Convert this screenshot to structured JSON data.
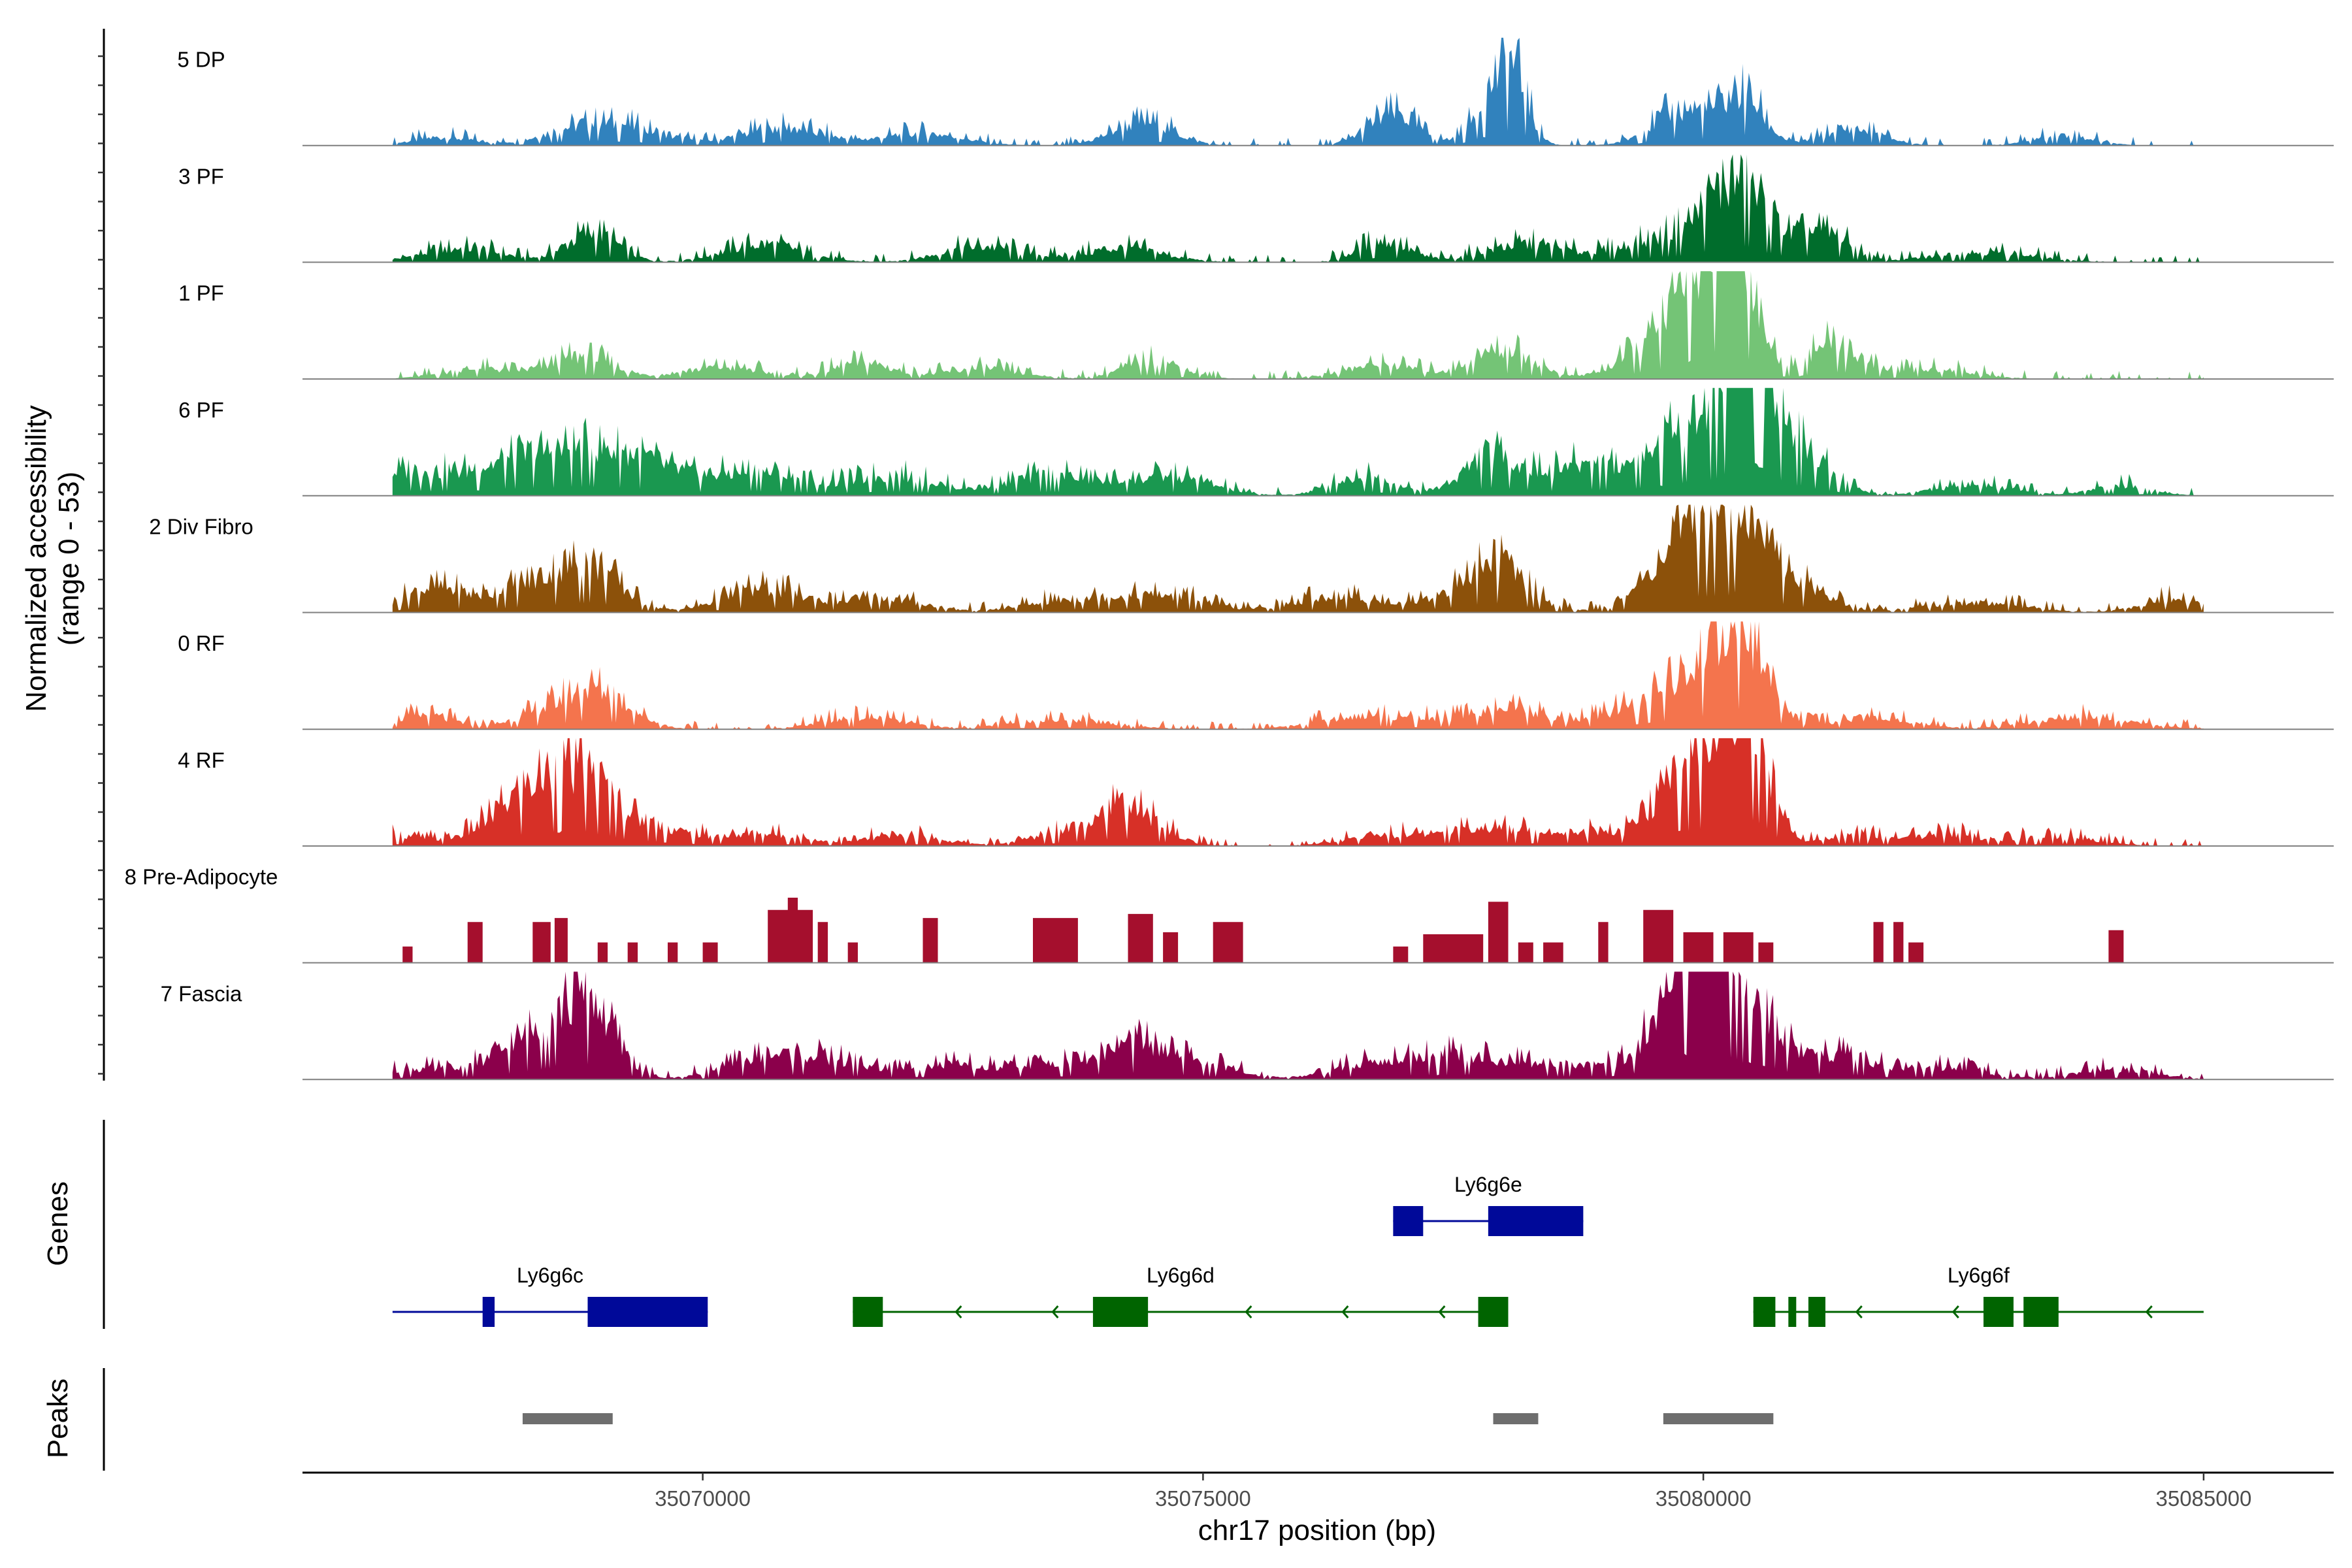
{
  "chart_data": {
    "type": "area",
    "title": "",
    "ylabel_line1": "Normalized accessibility",
    "ylabel_line2": "(range 0 - 53)",
    "y_range": [
      0,
      53
    ],
    "xlabel": "chr17 position (bp)",
    "xlim": [
      35066000,
      35086300
    ],
    "xticks": [
      35070000,
      35075000,
      35080000,
      35085000
    ],
    "track_start": 35066900,
    "track_end": 35085000,
    "tracks": [
      {
        "name": "5 DP",
        "color": "#3182bd",
        "step": false,
        "peaks": [
          [
            35067400,
            4,
            3
          ],
          [
            35068800,
            8,
            4
          ],
          [
            35069300,
            6,
            4
          ],
          [
            35070800,
            9,
            4
          ],
          [
            35072200,
            6,
            4
          ],
          [
            35074400,
            12,
            3
          ],
          [
            35076900,
            16,
            2.5
          ],
          [
            35077900,
            21,
            2
          ],
          [
            35078100,
            28,
            1.5
          ],
          [
            35079800,
            18,
            3
          ],
          [
            35080400,
            24,
            2
          ],
          [
            35081500,
            8,
            3
          ],
          [
            35083600,
            5,
            3
          ]
        ]
      },
      {
        "name": "3 PF",
        "color": "#006d2c",
        "step": false,
        "peaks": [
          [
            35067600,
            7,
            4
          ],
          [
            35068900,
            15,
            2.5
          ],
          [
            35070600,
            9,
            4
          ],
          [
            35072800,
            8,
            4
          ],
          [
            35074200,
            7,
            4
          ],
          [
            35076800,
            11,
            2.5
          ],
          [
            35078200,
            9,
            4
          ],
          [
            35079700,
            12,
            5
          ],
          [
            35080350,
            36,
            3
          ],
          [
            35081200,
            15,
            2.5
          ],
          [
            35082800,
            5,
            5
          ]
        ]
      },
      {
        "name": "1 PF",
        "color": "#74c476",
        "step": false,
        "peaks": [
          [
            35067800,
            5,
            4
          ],
          [
            35068800,
            11,
            3
          ],
          [
            35070200,
            6,
            4
          ],
          [
            35071600,
            8,
            3
          ],
          [
            35072800,
            5,
            4
          ],
          [
            35074500,
            9,
            3
          ],
          [
            35076800,
            7,
            4
          ],
          [
            35078000,
            15,
            3
          ],
          [
            35079400,
            12,
            3
          ],
          [
            35079900,
            22,
            2.5
          ],
          [
            35080350,
            50,
            2
          ],
          [
            35080050,
            28,
            3
          ],
          [
            35081300,
            18,
            2.5
          ],
          [
            35082300,
            5,
            4
          ]
        ]
      },
      {
        "name": "6 PF",
        "color": "#1a9850",
        "step": false,
        "peaks": [
          [
            35066950,
            10,
            3
          ],
          [
            35067600,
            8,
            4
          ],
          [
            35068500,
            20,
            5
          ],
          [
            35069300,
            15,
            4
          ],
          [
            35070500,
            12,
            5
          ],
          [
            35071900,
            10,
            4
          ],
          [
            35073500,
            10,
            5
          ],
          [
            35074700,
            9,
            4
          ],
          [
            35076600,
            10,
            3
          ],
          [
            35077900,
            20,
            3
          ],
          [
            35078700,
            11,
            3
          ],
          [
            35079500,
            15,
            5
          ],
          [
            35080000,
            30,
            3
          ],
          [
            35080380,
            52,
            1.5
          ],
          [
            35080600,
            38,
            2
          ],
          [
            35081000,
            20,
            3
          ],
          [
            35082700,
            5,
            4
          ],
          [
            35084200,
            5,
            3
          ]
        ]
      },
      {
        "name": "2 Div Fibro",
        "color": "#8c510a",
        "step": false,
        "peaks": [
          [
            35067300,
            12,
            3
          ],
          [
            35068300,
            14,
            4
          ],
          [
            35068900,
            20,
            3
          ],
          [
            35070600,
            12,
            4
          ],
          [
            35071800,
            7,
            4
          ],
          [
            35073800,
            7,
            5
          ],
          [
            35074700,
            7,
            4
          ],
          [
            35076300,
            8,
            4
          ],
          [
            35077700,
            10,
            5
          ],
          [
            35077950,
            17,
            2.5
          ],
          [
            35079700,
            26,
            3
          ],
          [
            35080450,
            34,
            2.5
          ],
          [
            35080100,
            22,
            3
          ],
          [
            35081000,
            12,
            3
          ],
          [
            35082700,
            5,
            5
          ],
          [
            35084700,
            7,
            3
          ]
        ]
      },
      {
        "name": "0 RF",
        "color": "#f4744d",
        "step": false,
        "peaks": [
          [
            35067200,
            7,
            3
          ],
          [
            35068600,
            10,
            4
          ],
          [
            35069000,
            14,
            3
          ],
          [
            35071600,
            6,
            4
          ],
          [
            35073600,
            5,
            5
          ],
          [
            35076700,
            7,
            5
          ],
          [
            35078000,
            10,
            4
          ],
          [
            35079300,
            9,
            4
          ],
          [
            35079800,
            15,
            3
          ],
          [
            35080200,
            22,
            2.5
          ],
          [
            35080450,
            32,
            2.5
          ],
          [
            35081700,
            6,
            4
          ],
          [
            35083800,
            6,
            5
          ]
        ]
      },
      {
        "name": "4 RF",
        "color": "#d73027",
        "step": false,
        "peaks": [
          [
            35066950,
            5,
            3
          ],
          [
            35068300,
            26,
            4
          ],
          [
            35068800,
            22,
            3
          ],
          [
            35069400,
            10,
            4
          ],
          [
            35070600,
            6,
            4
          ],
          [
            35072000,
            5,
            4
          ],
          [
            35073800,
            9,
            4
          ],
          [
            35074300,
            15,
            3
          ],
          [
            35076800,
            5,
            4
          ],
          [
            35077800,
            9,
            4
          ],
          [
            35078800,
            7,
            4
          ],
          [
            35079800,
            28,
            3
          ],
          [
            35080450,
            50,
            2
          ],
          [
            35080200,
            30,
            3
          ],
          [
            35081500,
            6,
            3
          ],
          [
            35082400,
            6,
            3
          ],
          [
            35083500,
            5,
            4
          ]
        ]
      },
      {
        "name": "8 Pre-Adipocyte",
        "color": "#a50f2d",
        "step": true,
        "blocks": [
          [
            35067000,
            35067100,
            8
          ],
          [
            35067650,
            35067800,
            20
          ],
          [
            35068300,
            35068480,
            20
          ],
          [
            35068520,
            35068650,
            22
          ],
          [
            35068950,
            35069050,
            10
          ],
          [
            35069250,
            35069350,
            10
          ],
          [
            35069650,
            35069750,
            10
          ],
          [
            35070000,
            35070150,
            10
          ],
          [
            35070650,
            35071100,
            26
          ],
          [
            35070850,
            35070950,
            32
          ],
          [
            35071150,
            35071250,
            20
          ],
          [
            35071450,
            35071550,
            10
          ],
          [
            35072200,
            35072350,
            22
          ],
          [
            35073300,
            35073750,
            22
          ],
          [
            35074250,
            35074500,
            24
          ],
          [
            35074600,
            35074750,
            15
          ],
          [
            35075100,
            35075400,
            20
          ],
          [
            35076900,
            35077050,
            8
          ],
          [
            35077200,
            35077800,
            14
          ],
          [
            35077850,
            35078050,
            30
          ],
          [
            35078150,
            35078300,
            10
          ],
          [
            35078400,
            35078600,
            10
          ],
          [
            35078950,
            35079050,
            20
          ],
          [
            35079400,
            35079700,
            26
          ],
          [
            35079800,
            35080100,
            15
          ],
          [
            35080200,
            35080500,
            15
          ],
          [
            35080550,
            35080700,
            10
          ],
          [
            35081700,
            35081800,
            20
          ],
          [
            35081900,
            35082000,
            20
          ],
          [
            35082050,
            35082200,
            10
          ],
          [
            35084050,
            35084200,
            16
          ]
        ]
      },
      {
        "name": "7 Fascia",
        "color": "#8b004b",
        "step": false,
        "peaks": [
          [
            35067100,
            5,
            3
          ],
          [
            35068200,
            14,
            4
          ],
          [
            35068900,
            28,
            2.5
          ],
          [
            35068600,
            15,
            3
          ],
          [
            35070600,
            10,
            4
          ],
          [
            35071300,
            8,
            4
          ],
          [
            35072400,
            7,
            4
          ],
          [
            35073500,
            8,
            4
          ],
          [
            35074300,
            15,
            3
          ],
          [
            35074900,
            8,
            4
          ],
          [
            35076700,
            7,
            4
          ],
          [
            35077600,
            12,
            5
          ],
          [
            35078800,
            7,
            4
          ],
          [
            35079700,
            24,
            3
          ],
          [
            35079950,
            40,
            2.5
          ],
          [
            35080300,
            30,
            3
          ],
          [
            35080650,
            15,
            3
          ],
          [
            35081400,
            12,
            3
          ],
          [
            35082400,
            6,
            4
          ],
          [
            35084100,
            5,
            4
          ]
        ]
      }
    ],
    "genes": [
      {
        "name": "Ly6g6e",
        "color": "#000999",
        "row": 1,
        "strand": "+",
        "start": 35076900,
        "end": 35078800,
        "exons": [
          [
            35076900,
            35077200,
            "small"
          ],
          [
            35077850,
            35078800,
            "large"
          ]
        ]
      },
      {
        "name": "Ly6g6c",
        "color": "#000999",
        "row": 2,
        "strand": "+",
        "start": 35066900,
        "end": 35070050,
        "exons": [
          [
            35066900,
            35066950,
            "tiny"
          ],
          [
            35067800,
            35067920,
            "small"
          ],
          [
            35068850,
            35070050,
            "large"
          ]
        ]
      },
      {
        "name": "Ly6g6d",
        "color": "#006400",
        "row": 2,
        "strand": "-",
        "start": 35071500,
        "end": 35078050,
        "exons": [
          [
            35071500,
            35071800,
            "small"
          ],
          [
            35073900,
            35074450,
            "large"
          ],
          [
            35077750,
            35078050,
            "small"
          ]
        ]
      },
      {
        "name": "Ly6g6f",
        "color": "#006400",
        "row": 2,
        "strand": "-",
        "start": 35080500,
        "end": 35085000,
        "exons": [
          [
            35080500,
            35080720,
            "small"
          ],
          [
            35080850,
            35080920,
            "small"
          ],
          [
            35081050,
            35081220,
            "small"
          ],
          [
            35082800,
            35083100,
            "small"
          ],
          [
            35083200,
            35083550,
            "large"
          ]
        ]
      }
    ],
    "peak_regions": [
      {
        "start": 35068200,
        "end": 35069100
      },
      {
        "start": 35077900,
        "end": 35078350
      },
      {
        "start": 35079600,
        "end": 35080700
      }
    ],
    "panel_labels": {
      "genes": "Genes",
      "peaks": "Peaks"
    }
  }
}
